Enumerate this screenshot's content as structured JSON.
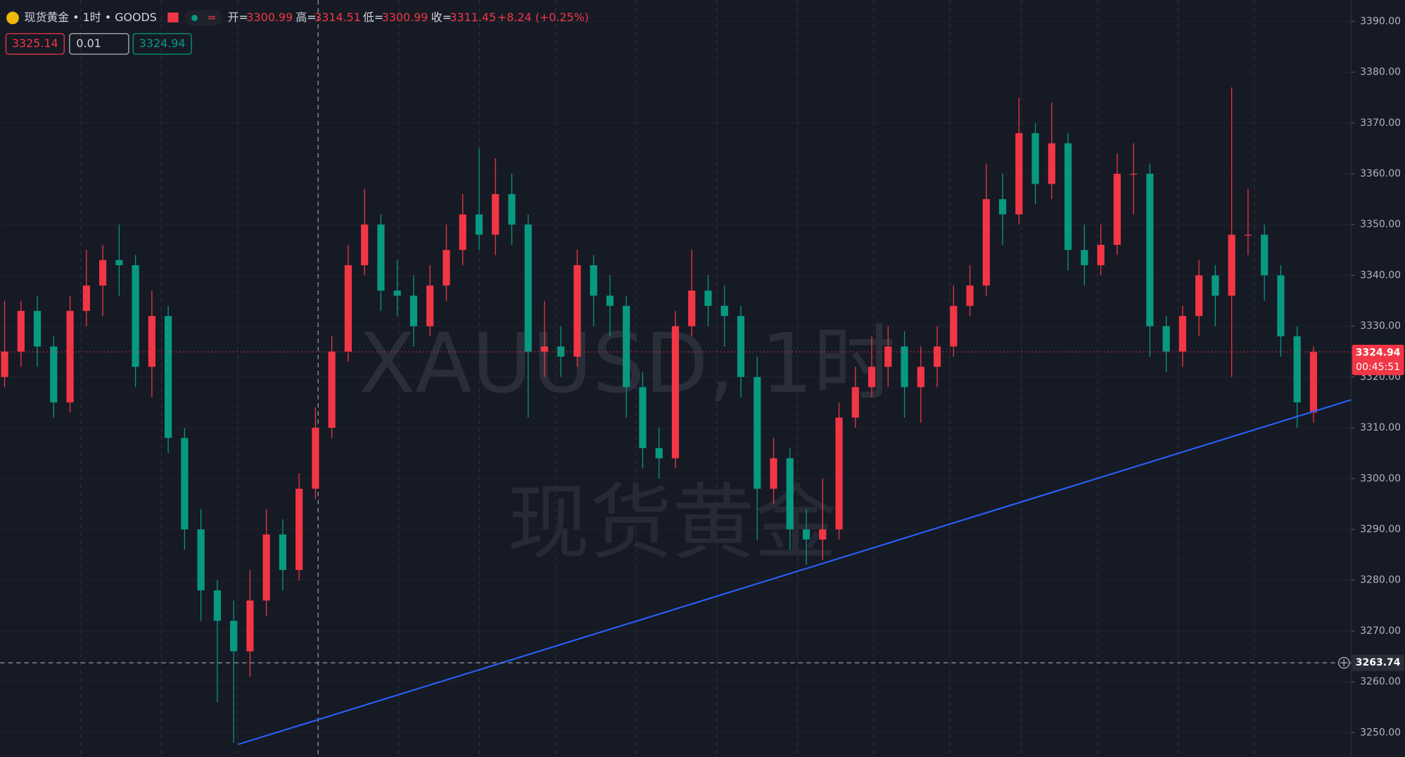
{
  "header": {
    "symbol": "现货黄金 • 1时 • GOODS",
    "approx": "≈",
    "open_label": "开=",
    "open": "3300.99",
    "high_label": "高=",
    "high": "3314.51",
    "low_label": "低=",
    "low": "3300.99",
    "close_label": "收=",
    "close": "3311.45",
    "change": "+8.24 (+0.25%)"
  },
  "order_panel": {
    "sell": "3325.14",
    "quantity": "0.01",
    "buy": "3324.94"
  },
  "watermark": {
    "line1": "XAUUSD, 1时",
    "line2": "现货黄金"
  },
  "price_tag": {
    "price": 3324.94,
    "countdown": "00:45:51"
  },
  "crosshair": {
    "price": 3263.74
  },
  "chart_data": {
    "type": "candlestick",
    "up_color": "#f23645",
    "down_color": "#089981",
    "open": [
      3320,
      3325,
      3333,
      3326,
      3315,
      3333,
      3338,
      3343,
      3342,
      3322,
      3332,
      3308,
      3290,
      3278,
      3272,
      3266,
      3276,
      3289,
      3282,
      3298,
      3310,
      3325,
      3342,
      3350,
      3337,
      3336,
      3330,
      3338,
      3345,
      3352,
      3348,
      3356,
      3350,
      3325,
      3326,
      3324,
      3342,
      3336,
      3334,
      3318,
      3306,
      3304,
      3330,
      3337,
      3334,
      3332,
      3320,
      3298,
      3304,
      3290,
      3288,
      3290,
      3312,
      3318,
      3322,
      3326,
      3318,
      3322,
      3326,
      3334,
      3338,
      3355,
      3352,
      3368,
      3358,
      3366,
      3345,
      3342,
      3346,
      3360,
      3360,
      3330,
      3325,
      3332,
      3340,
      3336,
      3348,
      3348,
      3340,
      3328,
      3313
    ],
    "high": [
      3335,
      3335,
      3336,
      3328,
      3336,
      3345,
      3346,
      3350,
      3344,
      3337,
      3334,
      3310,
      3294,
      3280,
      3276,
      3282,
      3294,
      3292,
      3301,
      3314,
      3328,
      3346,
      3357,
      3352,
      3343,
      3340,
      3342,
      3350,
      3356,
      3365,
      3363,
      3360,
      3352,
      3335,
      3330,
      3345,
      3344,
      3340,
      3336,
      3321,
      3310,
      3333,
      3345,
      3340,
      3338,
      3334,
      3324,
      3308,
      3306,
      3294,
      3300,
      3315,
      3322,
      3328,
      3330,
      3329,
      3326,
      3330,
      3338,
      3342,
      3362,
      3360,
      3375,
      3370,
      3374,
      3368,
      3350,
      3350,
      3364,
      3366,
      3362,
      3332,
      3334,
      3343,
      3342,
      3377,
      3357,
      3350,
      3342,
      3330,
      3326
    ],
    "low": [
      3318,
      3322,
      3322,
      3312,
      3313,
      3330,
      3332,
      3336,
      3318,
      3316,
      3305,
      3286,
      3272,
      3256,
      3248,
      3261,
      3273,
      3278,
      3280,
      3296,
      3308,
      3323,
      3340,
      3333,
      3332,
      3326,
      3328,
      3335,
      3342,
      3345,
      3344,
      3346,
      3312,
      3320,
      3320,
      3322,
      3330,
      3328,
      3312,
      3302,
      3300,
      3302,
      3328,
      3330,
      3326,
      3316,
      3288,
      3295,
      3286,
      3283,
      3284,
      3288,
      3310,
      3316,
      3318,
      3312,
      3311,
      3318,
      3324,
      3332,
      3336,
      3346,
      3350,
      3354,
      3355,
      3341,
      3338,
      3340,
      3344,
      3352,
      3324,
      3321,
      3322,
      3328,
      3330,
      3320,
      3344,
      3335,
      3324,
      3310,
      3311
    ],
    "close": [
      3325,
      3333,
      3326,
      3315,
      3333,
      3338,
      3343,
      3342,
      3322,
      3332,
      3308,
      3290,
      3278,
      3272,
      3266,
      3276,
      3289,
      3282,
      3298,
      3310,
      3325,
      3342,
      3350,
      3337,
      3336,
      3330,
      3338,
      3345,
      3352,
      3348,
      3356,
      3350,
      3325,
      3326,
      3324,
      3342,
      3336,
      3334,
      3318,
      3306,
      3304,
      3330,
      3337,
      3334,
      3332,
      3320,
      3298,
      3304,
      3290,
      3288,
      3290,
      3312,
      3318,
      3322,
      3326,
      3318,
      3322,
      3326,
      3334,
      3338,
      3355,
      3352,
      3368,
      3358,
      3366,
      3345,
      3342,
      3346,
      3360,
      3360,
      3330,
      3325,
      3332,
      3340,
      3336,
      3348,
      3348,
      3340,
      3328,
      3315,
      3324.94
    ],
    "ylim": [
      3245.2,
      3394.2
    ],
    "yticks": [
      {
        "value": 3250,
        "label": "3250.00"
      },
      {
        "value": 3260,
        "label": "3260.00"
      },
      {
        "value": 3270,
        "label": "3270.00"
      },
      {
        "value": 3280,
        "label": "3280.00"
      },
      {
        "value": 3290,
        "label": "3290.00"
      },
      {
        "value": 3300,
        "label": "3300.00"
      },
      {
        "value": 3310,
        "label": "3310.00"
      },
      {
        "value": 3320,
        "label": "3320.00"
      },
      {
        "value": 3330,
        "label": "3330.00"
      },
      {
        "value": 3340,
        "label": "3340.00"
      },
      {
        "value": 3350,
        "label": "3350.00"
      },
      {
        "value": 3360,
        "label": "3360.00"
      },
      {
        "value": 3370,
        "label": "3370.00"
      },
      {
        "value": 3380,
        "label": "3380.00"
      },
      {
        "value": 3390,
        "label": "3390.00"
      }
    ],
    "trendline": {
      "start": 3247.7,
      "end": 3315.5,
      "color": "#2962ff"
    }
  }
}
